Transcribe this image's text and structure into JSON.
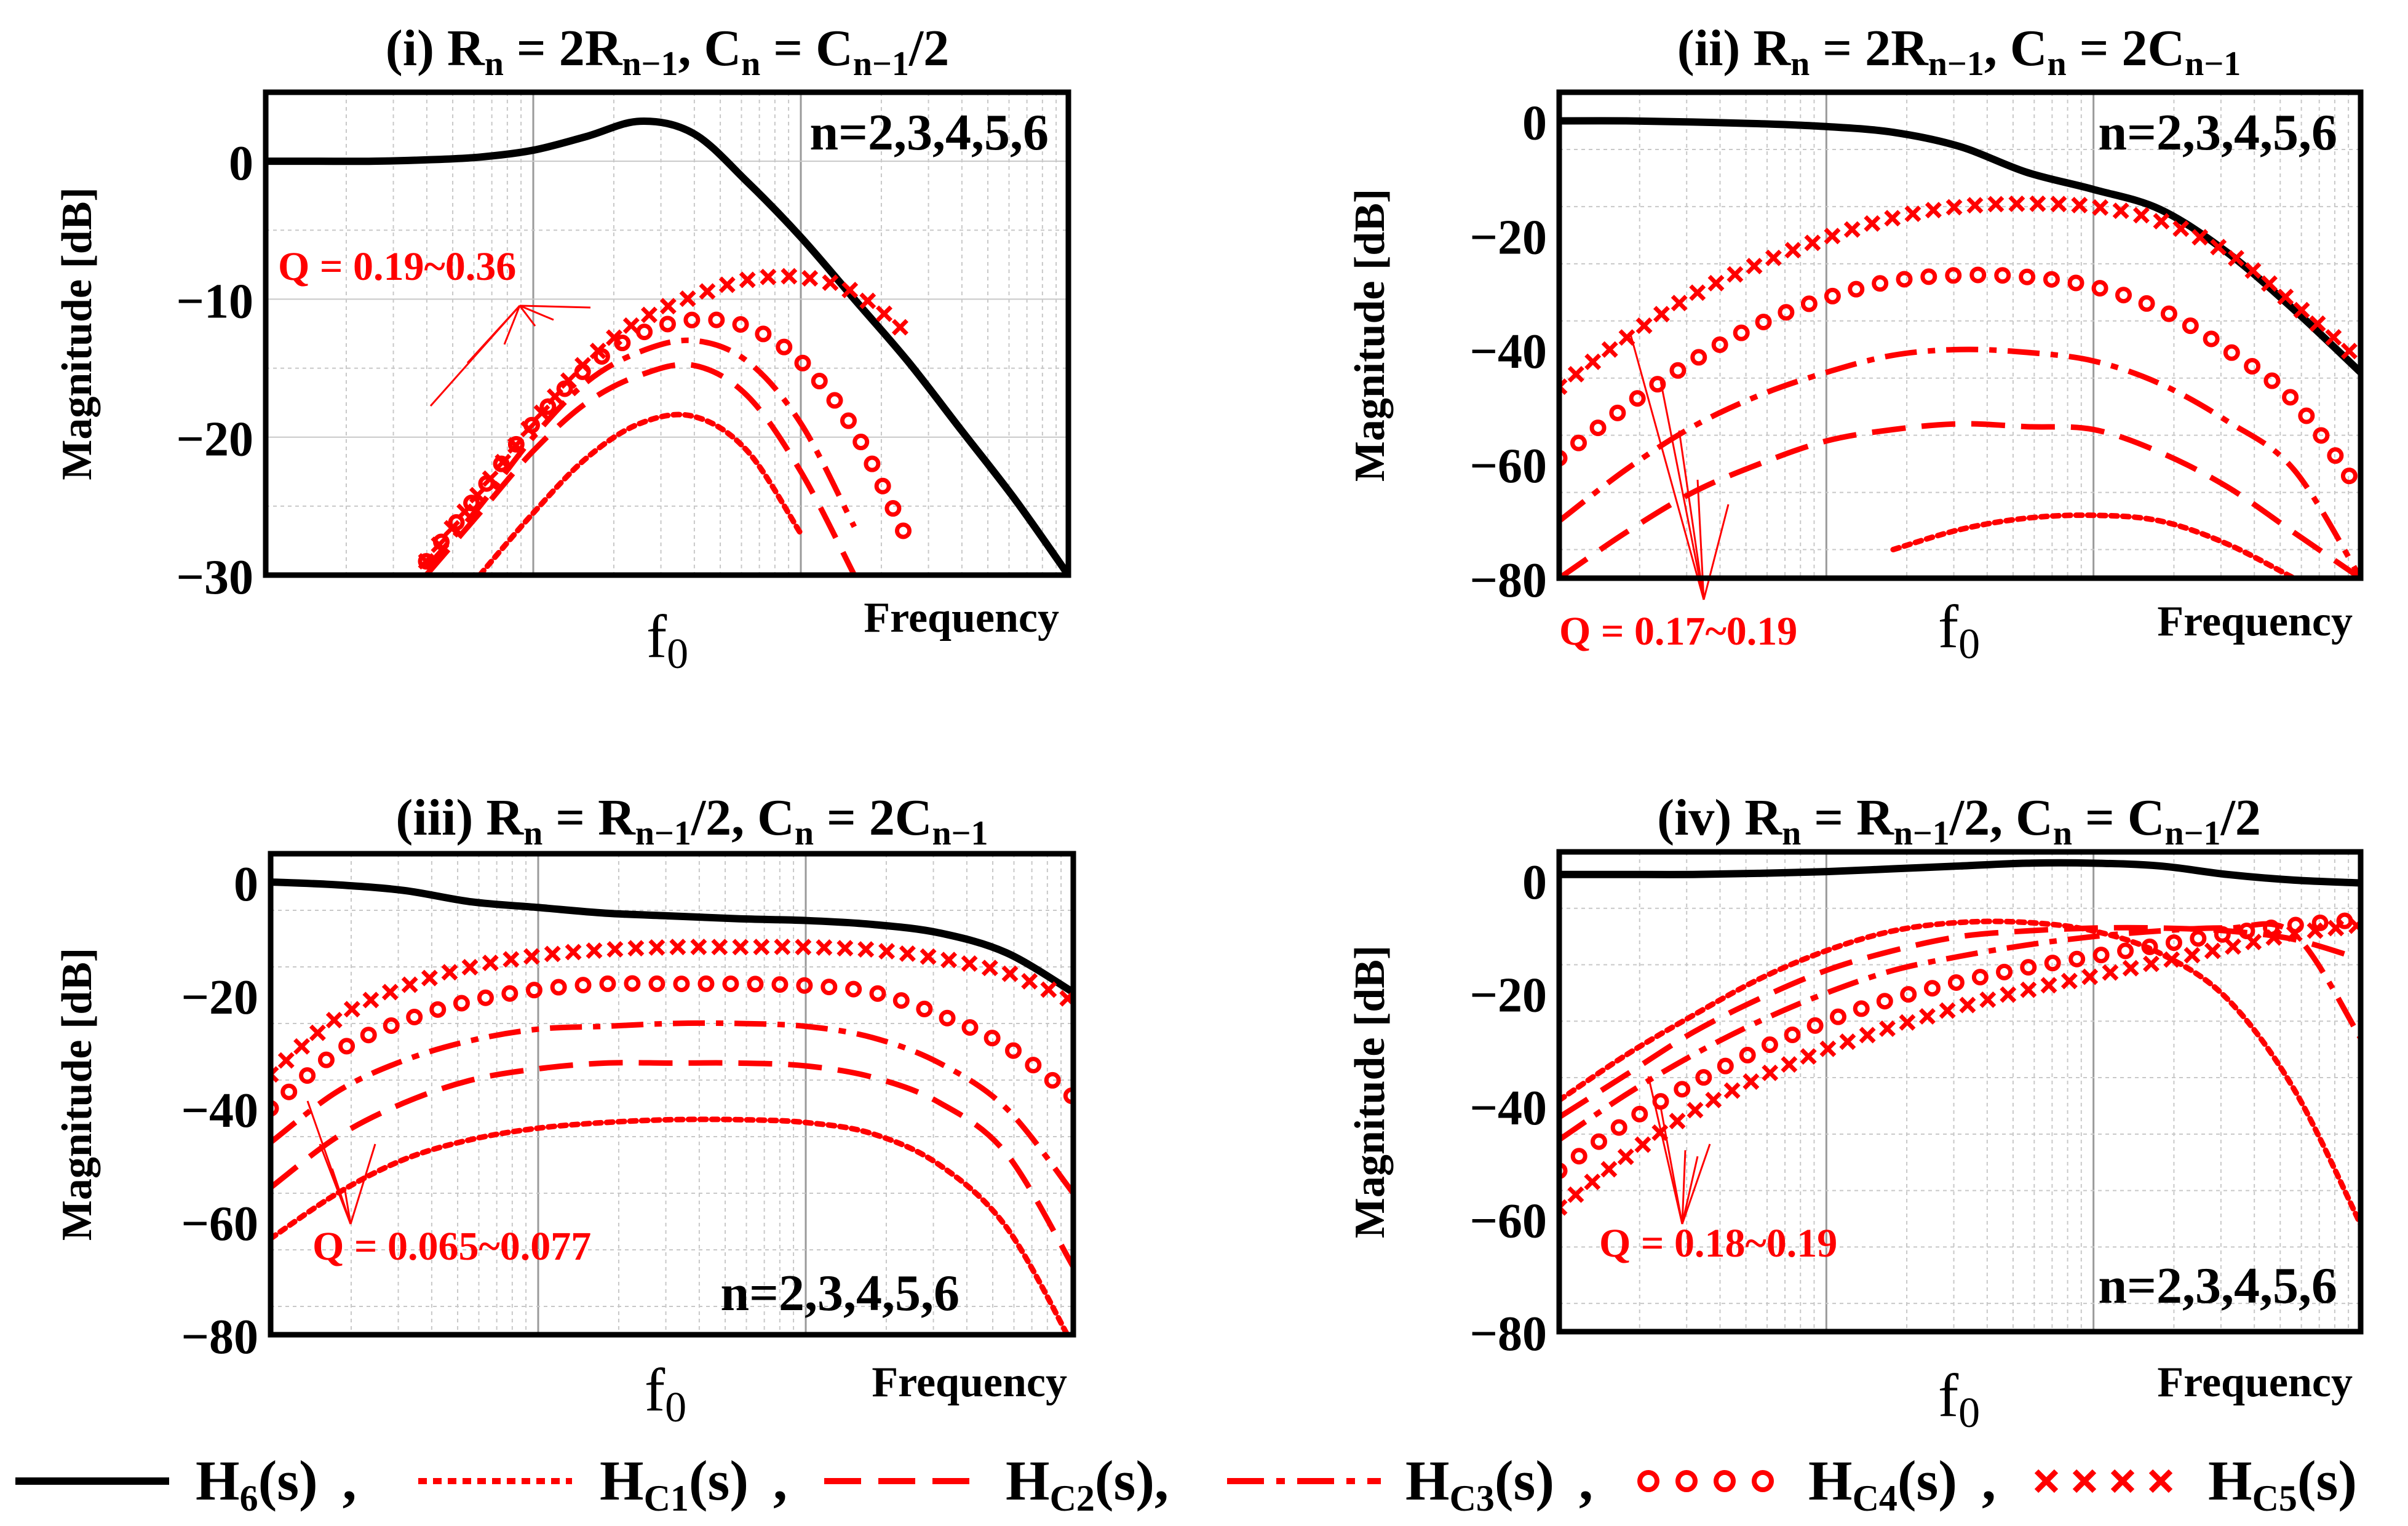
{
  "chart_data": [
    {
      "id": "i",
      "type": "line",
      "title_prefix": "(i) ",
      "title_parts": [
        [
          "R",
          ""
        ],
        [
          "n",
          "sub"
        ],
        [
          " = 2R",
          ""
        ],
        [
          "n−1",
          "sub"
        ],
        [
          ", C",
          ""
        ],
        [
          "n",
          "sub"
        ],
        [
          " = C",
          ""
        ],
        [
          "n−1",
          "sub"
        ],
        [
          "/2",
          ""
        ]
      ],
      "ylabel": "Magnitude [dB]",
      "xlabel": "Frequency",
      "f0_label": "f",
      "f0_sub": "0",
      "n_label": "n=2,3,4,5,6",
      "q_label": "Q = 0.19~0.36",
      "ylim": [
        -30,
        5
      ],
      "yticks": [
        0,
        -10,
        -20,
        -30
      ],
      "ytick_labels": [
        "0",
        "−10",
        "−20",
        "−30"
      ],
      "xlim_decades": [
        -2,
        1
      ],
      "x": [
        -2.0,
        -1.8,
        -1.6,
        -1.4,
        -1.2,
        -1.0,
        -0.8,
        -0.6,
        -0.4,
        -0.2,
        0.0,
        0.2,
        0.4,
        0.6,
        0.8,
        1.0
      ],
      "series": [
        {
          "name": "H6(s)",
          "style": "solid",
          "values": [
            0,
            0,
            0,
            0.1,
            0.3,
            0.8,
            1.8,
            2.9,
            2.0,
            -1.5,
            -5.5,
            -10.0,
            -14.5,
            -19.5,
            -24.5,
            -30.0
          ]
        },
        {
          "name": "HC1(s)",
          "style": "dotted",
          "values": [
            null,
            null,
            null,
            null,
            -30,
            -25.5,
            -21.5,
            -19.0,
            -18.5,
            -21.0,
            -27.0,
            null,
            null,
            null,
            null,
            null
          ]
        },
        {
          "name": "HC2(s)",
          "style": "dashed",
          "values": [
            null,
            null,
            null,
            -30,
            -25.5,
            -21.0,
            -17.5,
            -15.5,
            -14.8,
            -17.0,
            -22.5,
            -30.0,
            null,
            null,
            null,
            null
          ]
        },
        {
          "name": "HC3(s)",
          "style": "dashdot",
          "values": [
            null,
            null,
            null,
            -29.5,
            -25.0,
            -20.0,
            -16.0,
            -13.8,
            -13.0,
            -14.5,
            -19.0,
            -26.5,
            null,
            null,
            null,
            null
          ]
        },
        {
          "name": "HC4(s)",
          "style": "circles",
          "values": [
            null,
            null,
            null,
            -29.0,
            -24.0,
            -19.0,
            -15.0,
            -12.5,
            -11.5,
            -12.0,
            -14.5,
            -19.5,
            -27.5,
            null,
            null,
            null
          ]
        },
        {
          "name": "HC5(s)",
          "style": "crosses",
          "values": [
            null,
            null,
            null,
            -29.0,
            -24.0,
            -19.0,
            -14.5,
            -11.5,
            -9.8,
            -8.6,
            -8.4,
            -9.5,
            -12.5,
            null,
            null,
            null
          ]
        }
      ]
    },
    {
      "id": "ii",
      "type": "line",
      "title_prefix": "(ii) ",
      "title_parts": [
        [
          "R",
          ""
        ],
        [
          "n",
          "sub"
        ],
        [
          " = 2R",
          ""
        ],
        [
          "n−1",
          "sub"
        ],
        [
          ", C",
          ""
        ],
        [
          "n",
          "sub"
        ],
        [
          " = 2C",
          ""
        ],
        [
          "n−1",
          "sub"
        ]
      ],
      "ylabel": "Magnitude [dB]",
      "xlabel": "Frequency",
      "f0_label": "f",
      "f0_sub": "0",
      "n_label": "n=2,3,4,5,6",
      "q_label": "Q = 0.17~0.19",
      "ylim": [
        -80,
        5
      ],
      "yticks": [
        0,
        -20,
        -40,
        -60,
        -80
      ],
      "ytick_labels": [
        "0",
        "−20",
        "−40",
        "−60",
        "−80"
      ],
      "xlim_decades": [
        -2,
        1
      ],
      "x": [
        -2.0,
        -1.75,
        -1.5,
        -1.25,
        -1.0,
        -0.75,
        -0.5,
        -0.25,
        0.0,
        0.25,
        0.5,
        0.75,
        1.0
      ],
      "series": [
        {
          "name": "H6(s)",
          "style": "solid",
          "values": [
            0,
            0,
            -0.2,
            -0.5,
            -1.0,
            -2.0,
            -4.5,
            -9.0,
            -12.0,
            -15.5,
            -23.0,
            -33.0,
            -44.0
          ]
        },
        {
          "name": "HC1(s)",
          "style": "dotted",
          "values": [
            null,
            null,
            null,
            null,
            null,
            -75.0,
            -71.5,
            -69.5,
            -69.0,
            -70.0,
            -74.0,
            -80.0,
            null
          ]
        },
        {
          "name": "HC2(s)",
          "style": "dashed",
          "values": [
            -80.0,
            -72.0,
            -65.0,
            -60.0,
            -56.0,
            -54.0,
            -53.0,
            -53.5,
            -54.0,
            -58.0,
            -64.0,
            -72.0,
            -80.0
          ]
        },
        {
          "name": "HC3(s)",
          "style": "dashdot",
          "values": [
            -70.0,
            -61.0,
            -53.5,
            -48.0,
            -44.0,
            -41.0,
            -40.0,
            -40.5,
            -42.0,
            -46.0,
            -52.5,
            -61.0,
            -80.0
          ]
        },
        {
          "name": "HC4(s)",
          "style": "circles",
          "values": [
            -59.0,
            -50.0,
            -42.0,
            -35.5,
            -31.0,
            -28.0,
            -27.0,
            -27.3,
            -29.0,
            -33.0,
            -40.0,
            -49.0,
            -65.0
          ]
        },
        {
          "name": "HC5(s)",
          "style": "crosses",
          "values": [
            -46.5,
            -38.0,
            -30.5,
            -25.0,
            -20.5,
            -17.0,
            -15.0,
            -14.5,
            -15.0,
            -17.5,
            -23.0,
            -32.0,
            -42.0
          ]
        }
      ]
    },
    {
      "id": "iii",
      "type": "line",
      "title_prefix": "(iii) ",
      "title_parts": [
        [
          "R",
          ""
        ],
        [
          "n",
          "sub"
        ],
        [
          " = R",
          ""
        ],
        [
          "n−1",
          "sub"
        ],
        [
          "/2, C",
          ""
        ],
        [
          "n",
          "sub"
        ],
        [
          " = 2C",
          ""
        ],
        [
          "n−1",
          "sub"
        ]
      ],
      "ylabel": "Magnitude [dB]",
      "xlabel": "Frequency",
      "f0_label": "f",
      "f0_sub": "0",
      "n_label": "n=2,3,4,5,6",
      "q_label": "Q = 0.065~0.077",
      "ylim": [
        -80,
        5
      ],
      "yticks": [
        0,
        -20,
        -40,
        -60,
        -80
      ],
      "ytick_labels": [
        "0",
        "−20",
        "−40",
        "−60",
        "−80"
      ],
      "xlim_decades": [
        -2,
        1
      ],
      "x": [
        -2.0,
        -1.75,
        -1.5,
        -1.25,
        -1.0,
        -0.75,
        -0.5,
        -0.25,
        0.0,
        0.25,
        0.5,
        0.75,
        1.0
      ],
      "series": [
        {
          "name": "H6(s)",
          "style": "solid",
          "values": [
            0,
            -0.5,
            -1.5,
            -3.5,
            -4.5,
            -5.5,
            -6.0,
            -6.5,
            -6.8,
            -7.5,
            -9.0,
            -12.5,
            -19.5
          ]
        },
        {
          "name": "HC1(s)",
          "style": "dotted",
          "values": [
            -63.0,
            -55.0,
            -49.0,
            -45.5,
            -43.5,
            -42.5,
            -42.0,
            -42.0,
            -42.5,
            -44.5,
            -50.0,
            -61.0,
            -82.0
          ]
        },
        {
          "name": "HC2(s)",
          "style": "dashed",
          "values": [
            -54.0,
            -45.0,
            -39.0,
            -35.0,
            -33.0,
            -32.0,
            -32.0,
            -32.0,
            -32.5,
            -34.5,
            -39.0,
            -48.0,
            -68.0
          ]
        },
        {
          "name": "HC3(s)",
          "style": "dashdot",
          "values": [
            -46.0,
            -37.0,
            -31.5,
            -28.0,
            -26.0,
            -25.5,
            -25.0,
            -25.0,
            -25.5,
            -27.5,
            -32.0,
            -40.0,
            -55.0
          ]
        },
        {
          "name": "HC4(s)",
          "style": "circles",
          "values": [
            -40.0,
            -30.0,
            -24.5,
            -21.0,
            -19.0,
            -18.0,
            -18.0,
            -18.0,
            -18.3,
            -19.5,
            -23.5,
            -29.0,
            -38.0
          ]
        },
        {
          "name": "HC5(s)",
          "style": "crosses",
          "values": [
            -34.0,
            -24.0,
            -18.5,
            -15.0,
            -13.0,
            -12.0,
            -11.5,
            -11.5,
            -11.5,
            -12.0,
            -13.5,
            -16.0,
            -21.0
          ]
        }
      ]
    },
    {
      "id": "iv",
      "type": "line",
      "title_prefix": "(iv) ",
      "title_parts": [
        [
          "R",
          ""
        ],
        [
          "n",
          "sub"
        ],
        [
          " = R",
          ""
        ],
        [
          "n−1",
          "sub"
        ],
        [
          "/2, C",
          ""
        ],
        [
          "n",
          "sub"
        ],
        [
          " = C",
          ""
        ],
        [
          "n−1",
          "sub"
        ],
        [
          "/2",
          ""
        ]
      ],
      "ylabel": "Magnitude [dB]",
      "xlabel": "Frequency",
      "f0_label": "f",
      "f0_sub": "0",
      "n_label": "n=2,3,4,5,6",
      "q_label": "Q = 0.18~0.19",
      "ylim": [
        -80,
        5
      ],
      "yticks": [
        0,
        -20,
        -40,
        -60,
        -80
      ],
      "ytick_labels": [
        "0",
        "−20",
        "−40",
        "−60",
        "−80"
      ],
      "xlim_decades": [
        -2,
        1
      ],
      "x": [
        -2.0,
        -1.75,
        -1.5,
        -1.25,
        -1.0,
        -0.75,
        -0.5,
        -0.25,
        0.0,
        0.25,
        0.5,
        0.75,
        1.0
      ],
      "series": [
        {
          "name": "H6(s)",
          "style": "solid",
          "values": [
            1.0,
            1.0,
            1.0,
            1.2,
            1.5,
            2.0,
            2.5,
            3.0,
            3.0,
            2.5,
            1.0,
            0,
            -0.5
          ]
        },
        {
          "name": "HC1(s)",
          "style": "dotted",
          "values": [
            -39.0,
            -31.0,
            -24.0,
            -17.5,
            -12.5,
            -9.0,
            -7.5,
            -7.5,
            -9.0,
            -13.0,
            -21.0,
            -37.0,
            -61.0
          ]
        },
        {
          "name": "HC2(s)",
          "style": "dashed",
          "values": [
            -42.0,
            -34.5,
            -27.0,
            -21.0,
            -16.0,
            -12.5,
            -10.0,
            -9.0,
            -8.5,
            -8.5,
            -9.0,
            -10.5,
            -14.0
          ]
        },
        {
          "name": "HC3(s)",
          "style": "dashdot",
          "values": [
            -46.0,
            -38.0,
            -31.0,
            -25.0,
            -20.0,
            -16.0,
            -13.5,
            -11.5,
            -10.0,
            -9.0,
            -8.5,
            -9.5,
            -28.0
          ]
        },
        {
          "name": "HC4(s)",
          "style": "circles",
          "values": [
            -51.5,
            -43.0,
            -36.0,
            -30.0,
            -25.0,
            -21.0,
            -18.0,
            -15.5,
            -13.5,
            -11.5,
            -9.5,
            -8.0,
            -7.0
          ]
        },
        {
          "name": "HC5(s)",
          "style": "crosses",
          "values": [
            -58.0,
            -49.0,
            -41.0,
            -35.0,
            -30.0,
            -26.0,
            -22.5,
            -19.5,
            -17.0,
            -14.5,
            -12.0,
            -9.5,
            -8.0
          ]
        }
      ]
    }
  ],
  "legend": [
    {
      "style": "solid",
      "main": "H",
      "sub": "6",
      "tail": "(s)",
      "sep": ","
    },
    {
      "style": "dotted",
      "main": "H",
      "sub": "C1",
      "tail": "(s)",
      "sep": ","
    },
    {
      "style": "dashed",
      "main": "H",
      "sub": "C2",
      "tail": "(s),",
      "sep": ""
    },
    {
      "style": "dashdot",
      "main": "H",
      "sub": "C3",
      "tail": "(s)",
      "sep": ","
    },
    {
      "style": "circles",
      "main": "H",
      "sub": "C4",
      "tail": "(s)",
      "sep": ","
    },
    {
      "style": "crosses",
      "main": "H",
      "sub": "C5",
      "tail": "(s)",
      "sep": ""
    }
  ],
  "colors": {
    "h6": "#000000",
    "hc": "#ff0000",
    "grid": "#c8c8c8",
    "axis": "#000000"
  }
}
